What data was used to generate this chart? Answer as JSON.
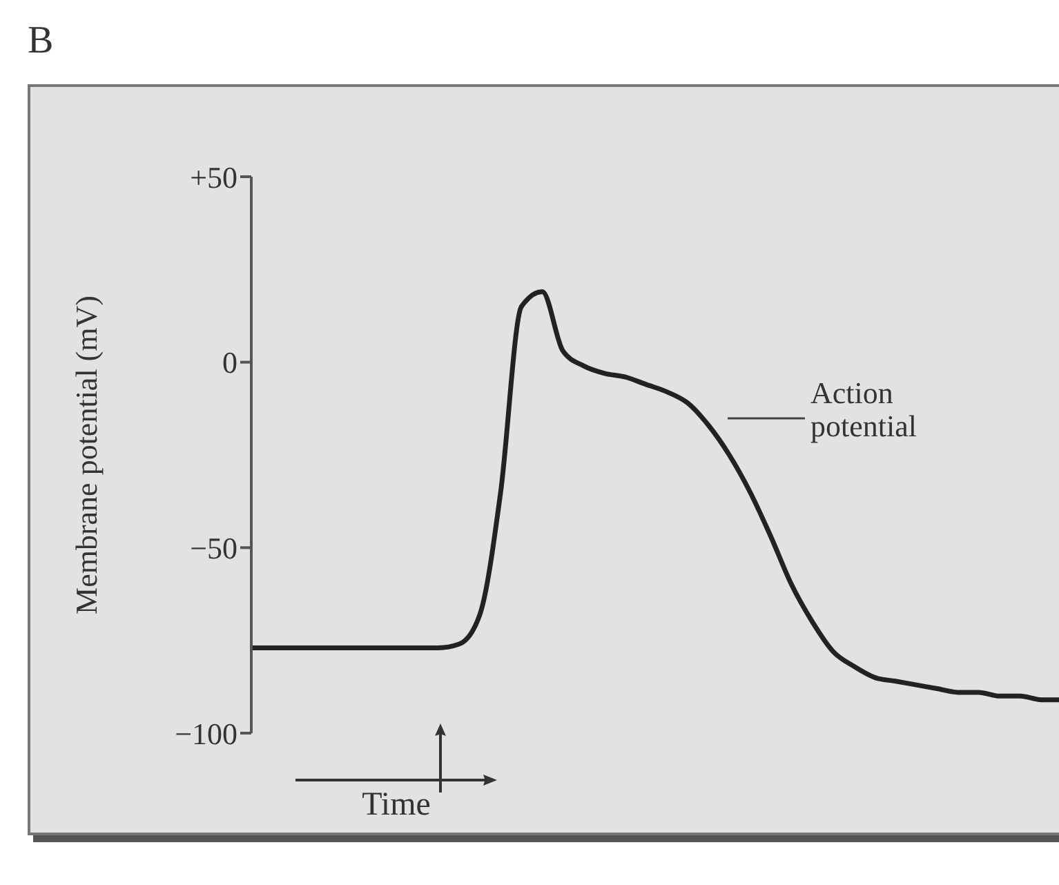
{
  "chart_data": {
    "type": "line",
    "title": "B",
    "ylabel": "Membrane potential (mV)",
    "xlabel": "Time",
    "annotations": [
      "Action potential"
    ],
    "categories": [
      null,
      null,
      null,
      null,
      null,
      null,
      null,
      null,
      null,
      null,
      null,
      null,
      null,
      null,
      null,
      null,
      null,
      null,
      null,
      null,
      null,
      null,
      null,
      null,
      null,
      null,
      null,
      null,
      null,
      null,
      null,
      null,
      null,
      null,
      null,
      null,
      null,
      null,
      null,
      null
    ],
    "series": [
      {
        "color": "#222222",
        "values": [
          -77,
          -77,
          -77,
          -77,
          -77,
          -77,
          -77,
          -77,
          -77,
          -77,
          -76,
          -68,
          -35,
          15,
          19,
          3,
          -1,
          -3,
          -4,
          -6,
          -8,
          -11,
          -17,
          -25,
          -35,
          -47,
          -60,
          -70,
          -78,
          -82,
          -85,
          -86,
          -87,
          -88,
          -89,
          -89,
          -90,
          -90,
          -91,
          -91
        ]
      }
    ],
    "ylim": [
      -100,
      50
    ],
    "yticks": [
      {
        "value": -100,
        "label": "−100"
      },
      {
        "value": -50,
        "label": "−50"
      },
      0,
      {
        "value": 50,
        "label": "+50"
      }
    ],
    "grid": false,
    "legend": false
  }
}
